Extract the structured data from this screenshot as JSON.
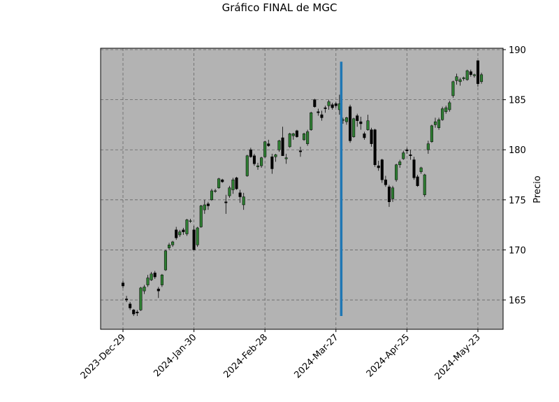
{
  "chart_data": {
    "type": "candlestick",
    "title": "Gráfico FINAL de MGC",
    "y_label": "Precio",
    "x": [
      0,
      1,
      2,
      3,
      4,
      5,
      6,
      7,
      8,
      9,
      10,
      11,
      12,
      13,
      14,
      15,
      16,
      17,
      18,
      19,
      20,
      21,
      22,
      23,
      24,
      25,
      26,
      27,
      28,
      29,
      30,
      31,
      32,
      33,
      34,
      35,
      36,
      37,
      38,
      39,
      40,
      41,
      42,
      43,
      44,
      45,
      46,
      47,
      48,
      49,
      50,
      51,
      52,
      53,
      54,
      55,
      56,
      57,
      58,
      59,
      60,
      61,
      62,
      63,
      64,
      65,
      66,
      67,
      68,
      69,
      70,
      71,
      72,
      73,
      74,
      75,
      76,
      77,
      78,
      79,
      80,
      81,
      82,
      83,
      84,
      85,
      86,
      87,
      88,
      89,
      90,
      91,
      92,
      93,
      94,
      95,
      96,
      97,
      98,
      99,
      100,
      101
    ],
    "open": [
      166.7,
      165.1,
      164.6,
      164.0,
      163.8,
      164.0,
      165.9,
      166.5,
      167.0,
      167.7,
      166.1,
      166.5,
      168.0,
      170.2,
      170.5,
      172.0,
      171.5,
      172.0,
      171.6,
      172.9,
      172.0,
      170.5,
      172.3,
      174.0,
      174.6,
      175.0,
      175.9,
      176.2,
      177.0,
      174.8,
      175.4,
      176.0,
      177.2,
      175.7,
      174.5,
      177.4,
      180.0,
      179.4,
      178.3,
      178.4,
      179.3,
      180.6,
      179.3,
      179.3,
      180.0,
      181.2,
      179.1,
      180.3,
      181.4,
      181.9,
      179.9,
      181.0,
      180.6,
      182.0,
      185.0,
      183.8,
      183.5,
      184.2,
      184.4,
      184.5,
      184.6,
      184.0,
      183.0,
      182.8,
      184.3,
      181.3,
      183.4,
      182.8,
      181.6,
      182.0,
      182.0,
      182.0,
      178.4,
      179.0,
      177.0,
      176.3,
      175.1,
      177.0,
      178.5,
      179.1,
      180.0,
      179.5,
      179.0,
      177.3,
      177.8,
      175.5,
      180.0,
      180.8,
      182.5,
      182.2,
      183.0,
      183.8,
      184.0,
      185.4,
      186.9,
      186.8,
      187.1,
      187.0,
      187.8,
      187.4,
      188.9,
      186.8
    ],
    "high": [
      166.9,
      165.4,
      164.8,
      164.1,
      164.0,
      166.3,
      166.5,
      167.5,
      167.8,
      167.9,
      166.3,
      167.6,
      170.0,
      170.7,
      170.9,
      172.3,
      172.0,
      172.2,
      173.1,
      173.1,
      172.4,
      172.3,
      174.5,
      175.0,
      174.8,
      176.1,
      176.1,
      177.2,
      177.1,
      175.5,
      176.4,
      177.2,
      177.3,
      176.0,
      175.7,
      179.5,
      180.2,
      179.6,
      178.7,
      179.3,
      180.9,
      181.0,
      179.6,
      179.6,
      181.0,
      182.3,
      179.6,
      181.7,
      181.7,
      182.0,
      180.3,
      181.7,
      182.0,
      183.8,
      185.1,
      184.1,
      183.9,
      184.4,
      185.0,
      184.7,
      184.8,
      185.5,
      183.2,
      183.3,
      184.5,
      183.2,
      183.6,
      183.3,
      181.8,
      183.5,
      182.2,
      182.1,
      178.9,
      179.1,
      177.4,
      176.5,
      176.4,
      178.6,
      179.0,
      179.9,
      180.2,
      180.0,
      179.3,
      177.5,
      178.3,
      177.6,
      180.9,
      182.5,
      183.2,
      183.2,
      184.3,
      184.4,
      184.9,
      186.9,
      187.6,
      187.2,
      187.3,
      188.0,
      188.0,
      187.6,
      188.9,
      187.7
    ],
    "low": [
      166.2,
      164.8,
      164.0,
      163.4,
      163.4,
      163.9,
      165.6,
      166.3,
      166.9,
      167.1,
      165.2,
      166.3,
      167.9,
      170.0,
      170.3,
      171.0,
      171.3,
      171.5,
      171.4,
      172.7,
      170.0,
      170.3,
      172.2,
      173.6,
      174.0,
      174.9,
      175.7,
      176.1,
      176.7,
      173.6,
      175.2,
      175.6,
      176.0,
      174.7,
      174.0,
      177.3,
      179.2,
      178.4,
      178.0,
      178.2,
      179.2,
      180.3,
      177.6,
      178.8,
      179.8,
      179.4,
      178.6,
      180.2,
      181.0,
      181.2,
      179.3,
      180.9,
      180.4,
      181.9,
      184.2,
      183.4,
      182.9,
      183.7,
      184.0,
      184.0,
      184.2,
      183.5,
      182.6,
      182.5,
      180.7,
      181.2,
      182.3,
      182.0,
      181.0,
      181.9,
      180.3,
      178.3,
      177.9,
      176.7,
      176.3,
      174.3,
      174.8,
      176.8,
      178.2,
      179.0,
      179.6,
      179.0,
      177.0,
      176.3,
      177.6,
      175.3,
      179.6,
      180.7,
      182.2,
      182.0,
      182.9,
      183.6,
      183.8,
      185.2,
      186.5,
      186.4,
      186.9,
      186.9,
      187.3,
      187.2,
      186.3,
      186.6
    ],
    "close": [
      166.4,
      165.0,
      164.2,
      163.6,
      163.7,
      166.2,
      166.3,
      167.2,
      167.6,
      167.3,
      165.9,
      167.5,
      169.9,
      170.5,
      170.8,
      171.2,
      171.8,
      171.8,
      173.0,
      172.9,
      170.0,
      172.2,
      174.4,
      174.5,
      174.4,
      175.9,
      175.9,
      177.1,
      176.8,
      174.7,
      176.2,
      177.0,
      176.1,
      175.3,
      175.3,
      179.4,
      179.3,
      178.6,
      178.4,
      179.2,
      180.8,
      180.4,
      178.1,
      179.5,
      180.9,
      179.4,
      179.2,
      181.6,
      181.6,
      181.3,
      179.8,
      181.6,
      181.8,
      183.7,
      184.3,
      183.7,
      183.2,
      184.1,
      184.8,
      184.2,
      184.4,
      184.6,
      183.0,
      183.2,
      180.9,
      183.1,
      182.9,
      182.6,
      181.2,
      182.9,
      180.6,
      178.5,
      178.2,
      177.0,
      176.5,
      174.8,
      176.2,
      178.5,
      178.8,
      179.7,
      179.9,
      179.4,
      177.2,
      176.4,
      178.2,
      177.5,
      180.6,
      182.4,
      182.8,
      183.0,
      184.1,
      184.2,
      184.7,
      186.8,
      187.3,
      187.0,
      187.2,
      187.9,
      187.5,
      187.5,
      186.6,
      187.5
    ],
    "up_color": "#2e7d32",
    "down_color": "#000000",
    "face_color": "#b3b3b3",
    "vline": {
      "x": 61.5,
      "ymin": 163.4,
      "ymax": 188.8,
      "color": "#1f77b4"
    },
    "xlim": [
      -6.3,
      107.1
    ],
    "ylim": [
      162.07,
      190.14
    ],
    "xticks": [
      {
        "value": 0,
        "label": "2023-Dec-29"
      },
      {
        "value": 20,
        "label": "2024-Jan-30"
      },
      {
        "value": 40,
        "label": "2024-Feb-28"
      },
      {
        "value": 60,
        "label": "2024-Mar-27"
      },
      {
        "value": 80,
        "label": "2024-Apr-25"
      },
      {
        "value": 100,
        "label": "2024-May-23"
      }
    ],
    "yticks": [
      165,
      170,
      175,
      180,
      185,
      190
    ],
    "grid": true
  }
}
